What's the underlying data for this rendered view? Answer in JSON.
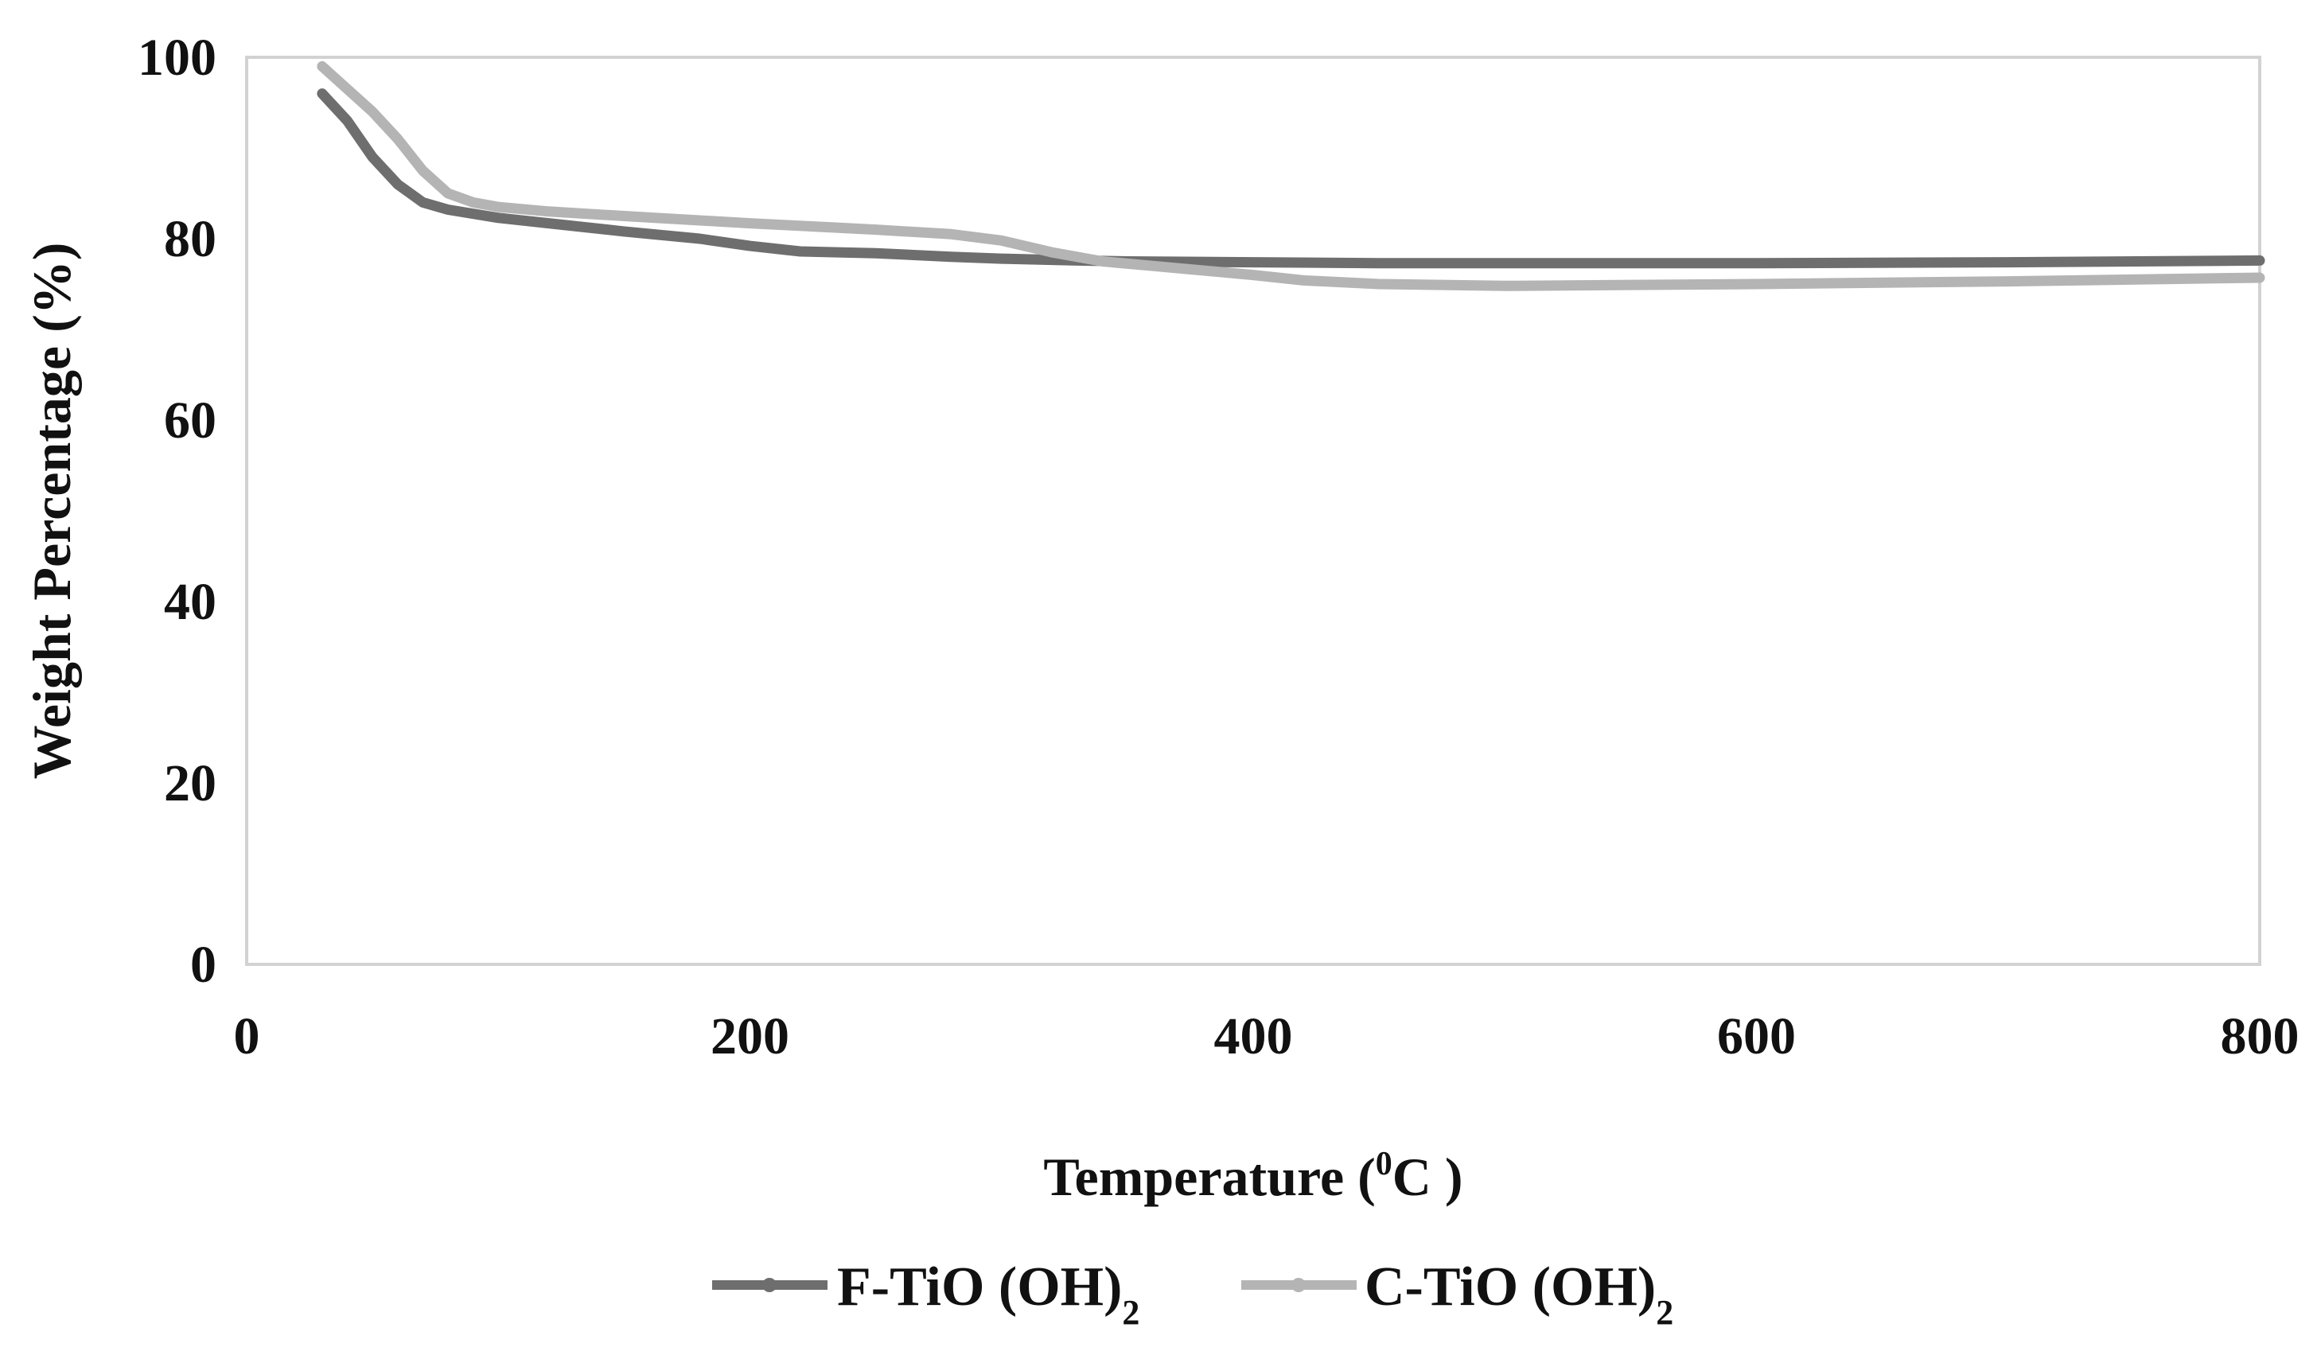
{
  "chart_data": {
    "type": "line",
    "xlabel_main": "Temperature (",
    "xlabel_sup": "0",
    "xlabel_end": "C )",
    "ylabel": "Weight Percentage (%)",
    "xlim": [
      0,
      800
    ],
    "ylim": [
      0,
      100
    ],
    "x_ticks": [
      0,
      200,
      400,
      600,
      800
    ],
    "y_ticks": [
      0,
      20,
      40,
      60,
      80,
      100
    ],
    "x_tick_labels": [
      "0",
      "200",
      "400",
      "600",
      "800"
    ],
    "y_tick_labels": [
      "0",
      "20",
      "40",
      "60",
      "80",
      "100"
    ],
    "legend_position": "bottom",
    "series": [
      {
        "name_main": "F-TiO (OH)",
        "name_sub": "2",
        "color": "#6e6e6e",
        "points": [
          [
            30,
            96
          ],
          [
            40,
            93
          ],
          [
            50,
            89
          ],
          [
            60,
            86
          ],
          [
            70,
            84
          ],
          [
            80,
            83.2
          ],
          [
            100,
            82.3
          ],
          [
            120,
            81.7
          ],
          [
            150,
            80.8
          ],
          [
            180,
            80
          ],
          [
            200,
            79.2
          ],
          [
            220,
            78.6
          ],
          [
            250,
            78.4
          ],
          [
            280,
            78
          ],
          [
            300,
            77.8
          ],
          [
            330,
            77.6
          ],
          [
            350,
            77.5
          ],
          [
            400,
            77.4
          ],
          [
            450,
            77.3
          ],
          [
            500,
            77.3
          ],
          [
            600,
            77.3
          ],
          [
            700,
            77.4
          ],
          [
            800,
            77.6
          ]
        ]
      },
      {
        "name_main": "C-TiO (OH)",
        "name_sub": "2",
        "color": "#b4b4b4",
        "points": [
          [
            30,
            99
          ],
          [
            40,
            96.5
          ],
          [
            50,
            94
          ],
          [
            60,
            91
          ],
          [
            70,
            87.5
          ],
          [
            80,
            85
          ],
          [
            90,
            84
          ],
          [
            100,
            83.5
          ],
          [
            120,
            83
          ],
          [
            150,
            82.5
          ],
          [
            200,
            81.7
          ],
          [
            250,
            81
          ],
          [
            280,
            80.5
          ],
          [
            300,
            79.8
          ],
          [
            320,
            78.5
          ],
          [
            340,
            77.5
          ],
          [
            360,
            77
          ],
          [
            400,
            76
          ],
          [
            420,
            75.4
          ],
          [
            450,
            75
          ],
          [
            500,
            74.8
          ],
          [
            600,
            75
          ],
          [
            700,
            75.3
          ],
          [
            800,
            75.7
          ]
        ]
      }
    ]
  }
}
